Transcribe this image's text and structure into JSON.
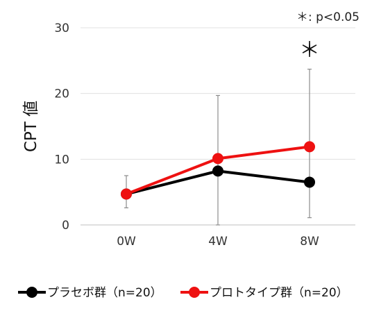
{
  "chart_data": {
    "type": "line",
    "title": "",
    "xlabel": "",
    "ylabel": "CPT 値",
    "categories": [
      "0W",
      "4W",
      "8W"
    ],
    "ylim": [
      0,
      30
    ],
    "yticks": [
      0,
      10,
      20,
      30
    ],
    "grid": "horizontal",
    "legend_position": "bottom",
    "series": [
      {
        "name": "プラセボ群（n=20）",
        "color": "#000000",
        "values": [
          4.7,
          8.2,
          6.5
        ],
        "error_upper": [
          7.5,
          19.7,
          23.7
        ],
        "error_lower": [
          2.6,
          0.0,
          1.1
        ]
      },
      {
        "name": "プロトタイプ群（n=20）",
        "color": "#ee1111",
        "values": [
          4.7,
          10.1,
          11.9
        ]
      }
    ],
    "annotations": {
      "significance_marker": "＊",
      "significance_category": "8W",
      "note": "＊: p<0.05"
    }
  }
}
